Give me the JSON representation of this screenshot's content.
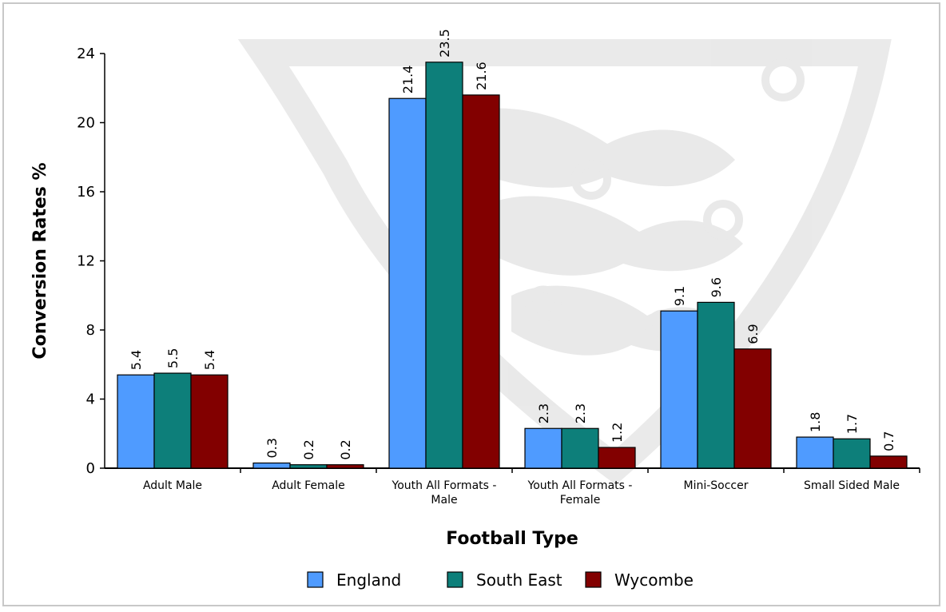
{
  "chart_data": {
    "type": "bar",
    "title": "",
    "xlabel": "Football Type",
    "ylabel": "Conversion Rates %",
    "ylim": [
      0,
      24
    ],
    "yticks": [
      0,
      4,
      8,
      12,
      16,
      20,
      24
    ],
    "grid": false,
    "legend_position": "bottom",
    "categories": [
      [
        "Adult Male"
      ],
      [
        "Adult Female"
      ],
      [
        "Youth All Formats -",
        "Male"
      ],
      [
        "Youth All Formats -",
        "Female"
      ],
      [
        "Mini-Soccer"
      ],
      [
        "Small Sided Male"
      ]
    ],
    "series": [
      {
        "name": "England",
        "color": "#4f9bff",
        "values": [
          5.4,
          0.3,
          21.4,
          2.3,
          9.1,
          1.8
        ]
      },
      {
        "name": "South East",
        "color": "#0d7f7a",
        "values": [
          5.5,
          0.2,
          23.5,
          2.3,
          9.6,
          1.7
        ]
      },
      {
        "name": "Wycombe",
        "color": "#820000",
        "values": [
          5.4,
          0.2,
          21.6,
          1.2,
          6.9,
          0.7
        ]
      }
    ]
  }
}
